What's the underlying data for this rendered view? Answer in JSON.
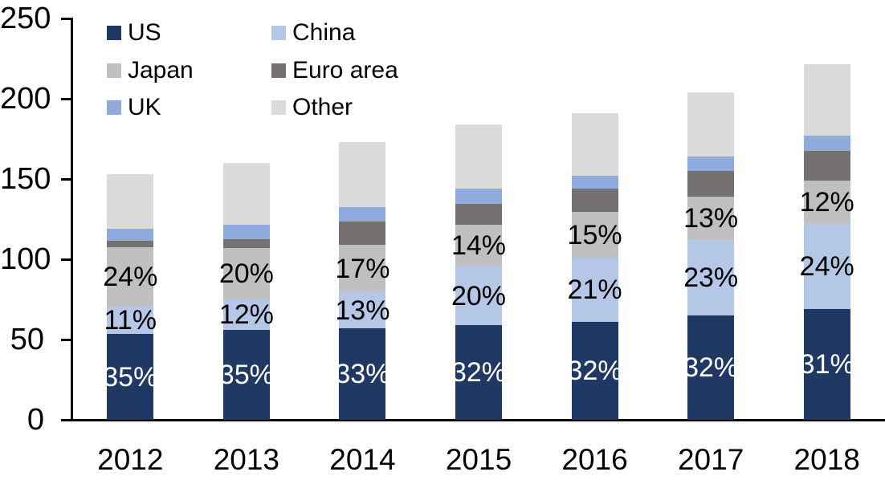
{
  "chart_data": {
    "type": "bar",
    "variant": "stacked-column",
    "title": "",
    "categories": [
      "2012",
      "2013",
      "2014",
      "2015",
      "2016",
      "2017",
      "2018"
    ],
    "series": [
      {
        "name": "US",
        "color": "#1f3864",
        "values": [
          53.5,
          56,
          57,
          59,
          61,
          65,
          69
        ],
        "labels": [
          "35%",
          "35%",
          "33%",
          "32%",
          "32%",
          "32%",
          "31%"
        ],
        "label_color": "#ffffff"
      },
      {
        "name": "China",
        "color": "#b4c7e7",
        "values": [
          17,
          19,
          22.5,
          36.5,
          40,
          47,
          53
        ],
        "labels": [
          "11%",
          "12%",
          "13%",
          "20%",
          "21%",
          "23%",
          "24%"
        ],
        "label_color": "#000000"
      },
      {
        "name": "Japan",
        "color": "#bfbfbf",
        "values": [
          37,
          32,
          29.5,
          26,
          28.5,
          27,
          27
        ],
        "labels": [
          "24%",
          "20%",
          "17%",
          "14%",
          "15%",
          "13%",
          "12%"
        ],
        "label_color": "#000000"
      },
      {
        "name": "Euro area",
        "color": "#767171",
        "values": [
          4,
          5.5,
          14.5,
          13,
          14.5,
          16,
          18.5
        ],
        "labels": null,
        "label_color": null
      },
      {
        "name": "UK",
        "color": "#8faadc",
        "values": [
          7.5,
          9,
          9,
          9.5,
          8,
          9,
          9.5
        ],
        "labels": null,
        "label_color": null
      },
      {
        "name": "Other",
        "color": "#dbdbdb",
        "values": [
          34,
          38.5,
          40.5,
          40,
          39,
          40,
          44.5
        ],
        "labels": null,
        "label_color": null
      }
    ],
    "totals": [
      153,
      160,
      173,
      184,
      191,
      204,
      222
    ],
    "xlabel": "",
    "ylabel": "",
    "y_axis": {
      "min": 0,
      "max": 250,
      "step": 50,
      "tick_labels": [
        "0",
        "50",
        "100",
        "150",
        "200",
        "250"
      ]
    },
    "grid": "off",
    "legend": {
      "position": "top-left",
      "columns": 2,
      "rows": [
        [
          "US",
          "China"
        ],
        [
          "Japan",
          "Euro area"
        ],
        [
          "UK",
          "Other"
        ]
      ]
    },
    "axis_color": "#000000"
  }
}
